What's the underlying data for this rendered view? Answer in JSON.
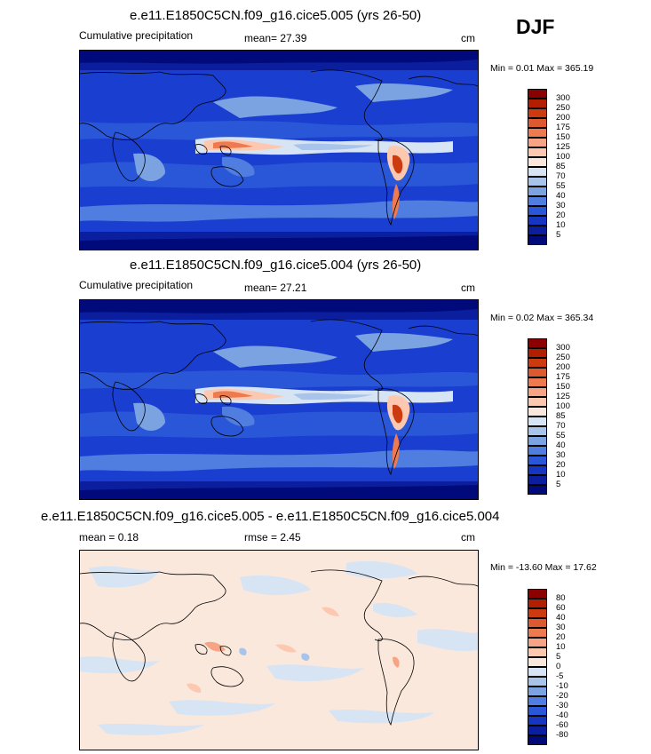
{
  "season": "DJF",
  "panels": [
    {
      "title": "e.e11.E1850C5CN.f09_g16.cice5.005 (yrs 26-50)",
      "left_label": "Cumulative precipitation",
      "mean_label": "mean=  27.39",
      "units": "cm",
      "minmax": "Min =  0.01 Max = 365.19",
      "colorbar": {
        "labels": [
          "300",
          "250",
          "200",
          "175",
          "150",
          "125",
          "100",
          "85",
          "70",
          "55",
          "40",
          "30",
          "20",
          "10",
          "5"
        ],
        "colors": [
          "#8b0000",
          "#b21f00",
          "#cc3a10",
          "#dd5a30",
          "#ee7b50",
          "#f7a385",
          "#fcc9b0",
          "#fbe8dc",
          "#d7e4f4",
          "#a9c4ea",
          "#7ba3e2",
          "#4f7de0",
          "#2a57d8",
          "#1636c2",
          "#0b1f9e",
          "#000a7a"
        ]
      }
    },
    {
      "title": "e.e11.E1850C5CN.f09_g16.cice5.004 (yrs 26-50)",
      "left_label": "Cumulative precipitation",
      "mean_label": "mean=  27.21",
      "units": "cm",
      "minmax": "Min =  0.02 Max = 365.34",
      "colorbar": {
        "labels": [
          "300",
          "250",
          "200",
          "175",
          "150",
          "125",
          "100",
          "85",
          "70",
          "55",
          "40",
          "30",
          "20",
          "10",
          "5"
        ],
        "colors": [
          "#8b0000",
          "#b21f00",
          "#cc3a10",
          "#dd5a30",
          "#ee7b50",
          "#f7a385",
          "#fcc9b0",
          "#fbe8dc",
          "#d7e4f4",
          "#a9c4ea",
          "#7ba3e2",
          "#4f7de0",
          "#2a57d8",
          "#1636c2",
          "#0b1f9e",
          "#000a7a"
        ]
      }
    },
    {
      "title": "e.e11.E1850C5CN.f09_g16.cice5.005 - e.e11.E1850C5CN.f09_g16.cice5.004",
      "left_label": "mean =   0.18",
      "mean_label": "rmse =   2.45",
      "units": "cm",
      "minmax": "Min = -13.60 Max =  17.62",
      "colorbar": {
        "labels": [
          "80",
          "60",
          "40",
          "30",
          "20",
          "10",
          "5",
          "0",
          "-5",
          "-10",
          "-20",
          "-30",
          "-40",
          "-60",
          "-80"
        ],
        "colors": [
          "#8b0000",
          "#b21f00",
          "#cc3a10",
          "#dd5a30",
          "#ee7b50",
          "#f7a385",
          "#fcc9b0",
          "#fbe8dc",
          "#d7e4f4",
          "#a9c4ea",
          "#7ba3e2",
          "#4f7de0",
          "#2a57d8",
          "#1636c2",
          "#0b1f9e",
          "#000a7a"
        ]
      }
    }
  ]
}
